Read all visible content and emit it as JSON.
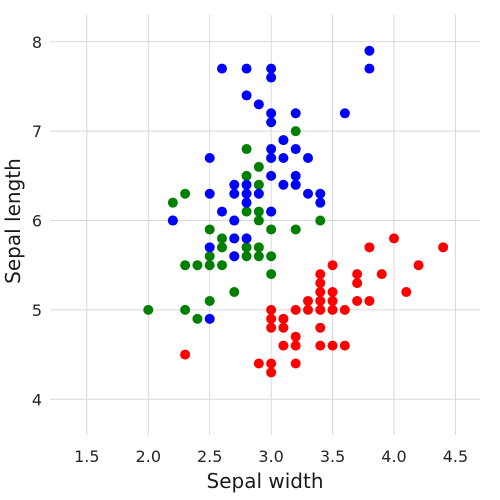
{
  "chart_data": {
    "type": "scatter",
    "title": "",
    "xlabel": "Sepal width",
    "ylabel": "Sepal length",
    "xlim": [
      1.2,
      4.7
    ],
    "ylim": [
      3.6,
      8.3
    ],
    "xticks": [
      1.5,
      2.0,
      2.5,
      3.0,
      3.5,
      4.0,
      4.5
    ],
    "xtick_labels": [
      "1.5",
      "2.0",
      "2.5",
      "3.0",
      "3.5",
      "4.0",
      "4.5"
    ],
    "yticks": [
      4,
      5,
      6,
      7,
      8
    ],
    "ytick_labels": [
      "4",
      "5",
      "6",
      "7",
      "8"
    ],
    "grid": true,
    "legend": "none",
    "series": [
      {
        "color": "#ff0000",
        "points": [
          [
            2.3,
            4.5
          ],
          [
            2.9,
            4.4
          ],
          [
            3.0,
            4.4
          ],
          [
            3.2,
            4.4
          ],
          [
            3.0,
            4.3
          ],
          [
            3.0,
            4.8
          ],
          [
            3.0,
            4.9
          ],
          [
            3.0,
            5.0
          ],
          [
            3.1,
            4.8
          ],
          [
            3.1,
            4.9
          ],
          [
            3.1,
            4.6
          ],
          [
            3.2,
            4.7
          ],
          [
            3.2,
            4.6
          ],
          [
            3.2,
            5.0
          ],
          [
            3.3,
            5.0
          ],
          [
            3.3,
            5.1
          ],
          [
            3.4,
            4.8
          ],
          [
            3.4,
            5.0
          ],
          [
            3.4,
            5.1
          ],
          [
            3.4,
            5.2
          ],
          [
            3.4,
            5.4
          ],
          [
            3.4,
            4.6
          ],
          [
            3.5,
            5.0
          ],
          [
            3.5,
            5.1
          ],
          [
            3.5,
            5.2
          ],
          [
            3.5,
            4.6
          ],
          [
            3.5,
            5.5
          ],
          [
            3.4,
            5.3
          ],
          [
            3.6,
            4.6
          ],
          [
            3.6,
            5.0
          ],
          [
            3.7,
            5.1
          ],
          [
            3.7,
            5.3
          ],
          [
            3.7,
            5.4
          ],
          [
            3.8,
            5.1
          ],
          [
            3.8,
            5.7
          ],
          [
            3.9,
            5.4
          ],
          [
            4.0,
            5.8
          ],
          [
            4.1,
            5.2
          ],
          [
            4.2,
            5.5
          ],
          [
            4.4,
            5.7
          ]
        ]
      },
      {
        "color": "#008000",
        "points": [
          [
            2.0,
            5.0
          ],
          [
            2.2,
            6.2
          ],
          [
            2.2,
            6.0
          ],
          [
            2.3,
            6.3
          ],
          [
            2.3,
            5.5
          ],
          [
            2.3,
            5.0
          ],
          [
            2.4,
            5.5
          ],
          [
            2.4,
            4.9
          ],
          [
            2.5,
            5.6
          ],
          [
            2.5,
            5.5
          ],
          [
            2.5,
            5.1
          ],
          [
            2.5,
            5.9
          ],
          [
            2.6,
            5.5
          ],
          [
            2.6,
            5.7
          ],
          [
            2.6,
            5.8
          ],
          [
            2.7,
            5.2
          ],
          [
            2.7,
            5.6
          ],
          [
            2.7,
            5.8
          ],
          [
            2.7,
            6.0
          ],
          [
            2.8,
            5.6
          ],
          [
            2.8,
            5.7
          ],
          [
            2.8,
            6.1
          ],
          [
            2.8,
            6.5
          ],
          [
            2.8,
            6.8
          ],
          [
            2.9,
            5.6
          ],
          [
            2.9,
            5.7
          ],
          [
            2.9,
            6.0
          ],
          [
            2.9,
            6.1
          ],
          [
            2.9,
            6.4
          ],
          [
            2.9,
            6.6
          ],
          [
            3.0,
            5.4
          ],
          [
            3.0,
            5.6
          ],
          [
            3.0,
            5.9
          ],
          [
            3.0,
            6.1
          ],
          [
            3.0,
            6.7
          ],
          [
            3.1,
            6.9
          ],
          [
            3.2,
            5.9
          ],
          [
            3.2,
            7.0
          ],
          [
            3.2,
            6.4
          ],
          [
            3.4,
            6.0
          ]
        ]
      },
      {
        "color": "#0000ff",
        "points": [
          [
            2.2,
            6.0
          ],
          [
            2.5,
            4.9
          ],
          [
            2.5,
            5.7
          ],
          [
            2.5,
            6.3
          ],
          [
            2.5,
            6.7
          ],
          [
            2.6,
            6.1
          ],
          [
            2.6,
            7.7
          ],
          [
            2.7,
            5.8
          ],
          [
            2.7,
            6.3
          ],
          [
            2.7,
            6.4
          ],
          [
            2.7,
            6.0
          ],
          [
            2.7,
            5.6
          ],
          [
            2.8,
            5.8
          ],
          [
            2.8,
            6.2
          ],
          [
            2.8,
            6.3
          ],
          [
            2.8,
            6.4
          ],
          [
            2.8,
            7.4
          ],
          [
            2.8,
            7.7
          ],
          [
            2.9,
            6.3
          ],
          [
            2.9,
            7.3
          ],
          [
            3.0,
            6.1
          ],
          [
            3.0,
            6.5
          ],
          [
            3.0,
            6.7
          ],
          [
            3.0,
            6.8
          ],
          [
            3.0,
            7.1
          ],
          [
            3.0,
            7.2
          ],
          [
            3.0,
            7.6
          ],
          [
            3.0,
            7.7
          ],
          [
            3.1,
            6.4
          ],
          [
            3.1,
            6.7
          ],
          [
            3.1,
            6.9
          ],
          [
            3.2,
            6.4
          ],
          [
            3.2,
            6.5
          ],
          [
            3.2,
            6.8
          ],
          [
            3.2,
            7.2
          ],
          [
            3.3,
            6.3
          ],
          [
            3.3,
            6.7
          ],
          [
            3.4,
            6.2
          ],
          [
            3.4,
            6.3
          ],
          [
            3.6,
            7.2
          ],
          [
            3.8,
            7.7
          ],
          [
            3.8,
            7.9
          ]
        ]
      }
    ]
  }
}
